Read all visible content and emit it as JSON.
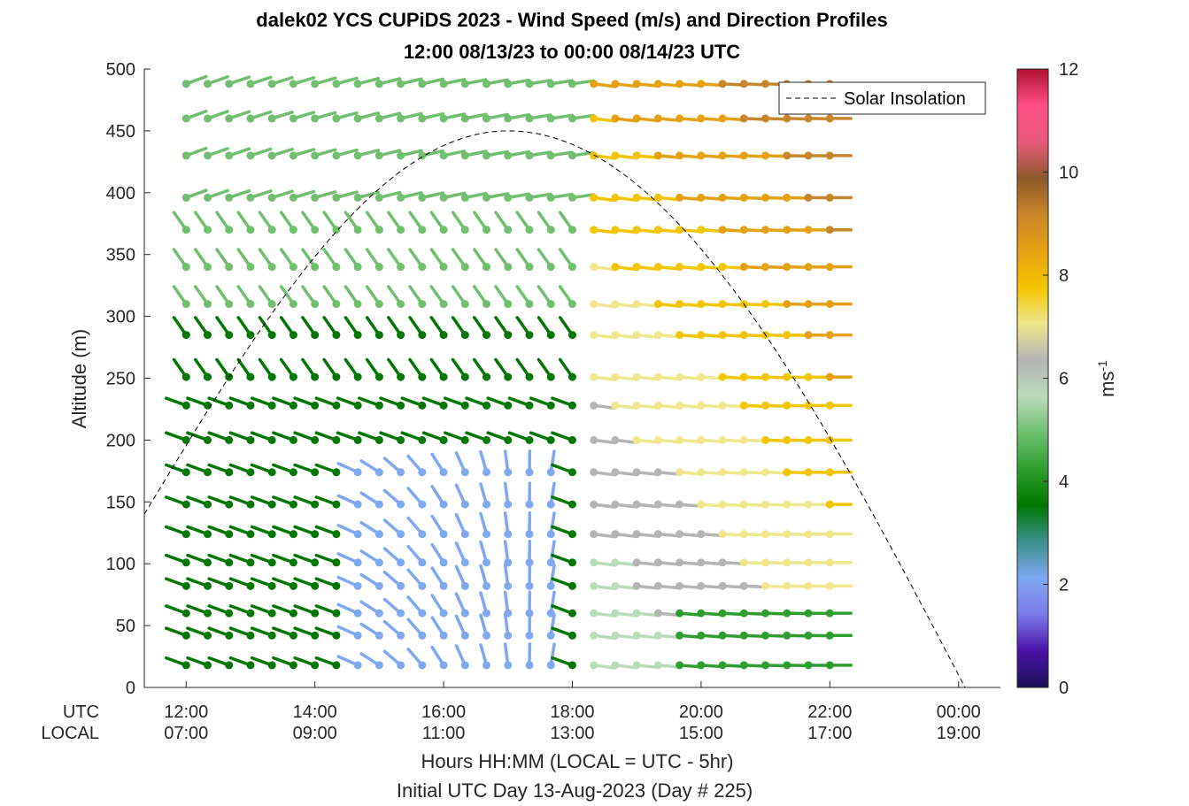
{
  "title_line1": "dalek02 YCS CUPiDS 2023 - Wind Speed (m/s) and Direction Profiles",
  "title_line2": "12:00 08/13/23 to 00:00 08/14/23  UTC",
  "y_axis_label": "Altitude (m)",
  "x_axis_label": "Hours HH:MM  (LOCAL = UTC - 5hr)",
  "footer_label": "Initial UTC Day 13-Aug-2023 (Day # 225)",
  "utc_row_label": "UTC",
  "local_row_label": "LOCAL",
  "legend_label": "Solar Insolation",
  "colorbar_unit": "ms",
  "colorbar_unit_exp": "-1",
  "chart_data": {
    "type": "wind-barb-profile",
    "x_ticks_utc": [
      "12:00",
      "14:00",
      "16:00",
      "18:00",
      "20:00",
      "22:00",
      "00:00"
    ],
    "x_ticks_local": [
      "07:00",
      "09:00",
      "11:00",
      "13:00",
      "15:00",
      "17:00",
      "19:00"
    ],
    "x_tick_hours": [
      12,
      14,
      16,
      18,
      20,
      22,
      24
    ],
    "x_range_hours": [
      11.35,
      24.65
    ],
    "y_ticks": [
      "0",
      "50",
      "100",
      "150",
      "200",
      "250",
      "300",
      "350",
      "400",
      "450",
      "500"
    ],
    "ylim": [
      0,
      500
    ],
    "colorbar_ticks": [
      "0",
      "2",
      "4",
      "6",
      "8",
      "10",
      "12"
    ],
    "colorbar_range": [
      0,
      12
    ],
    "time_start_hour": 12,
    "time_step_hours": 0.3333,
    "time_count": 31,
    "altitudes": [
      18,
      42,
      60,
      82,
      101,
      124,
      148,
      174,
      200,
      228,
      251,
      285,
      310,
      340,
      370,
      396,
      430,
      460,
      488
    ],
    "solar_insolation": {
      "start_hour": 11.35,
      "end_hour": 24.1,
      "peak_hour": 17.0,
      "peak_altitude": 450,
      "style": "dashed"
    },
    "legend_position": "top-right"
  },
  "colors": {
    "background": "#ffffff",
    "axis": "#262626",
    "colormap_stops": [
      "#1b0f54",
      "#4b11a8",
      "#7a7ae8",
      "#7fa8f0",
      "#3c8f8f",
      "#007700",
      "#2e9e2e",
      "#6fbf6f",
      "#b8dcb8",
      "#b4b4b4",
      "#f0e68c",
      "#f2c500",
      "#e6a112",
      "#c8862a",
      "#8b5a2b",
      "#e85a7a",
      "#ff4f86",
      "#b01030"
    ]
  }
}
